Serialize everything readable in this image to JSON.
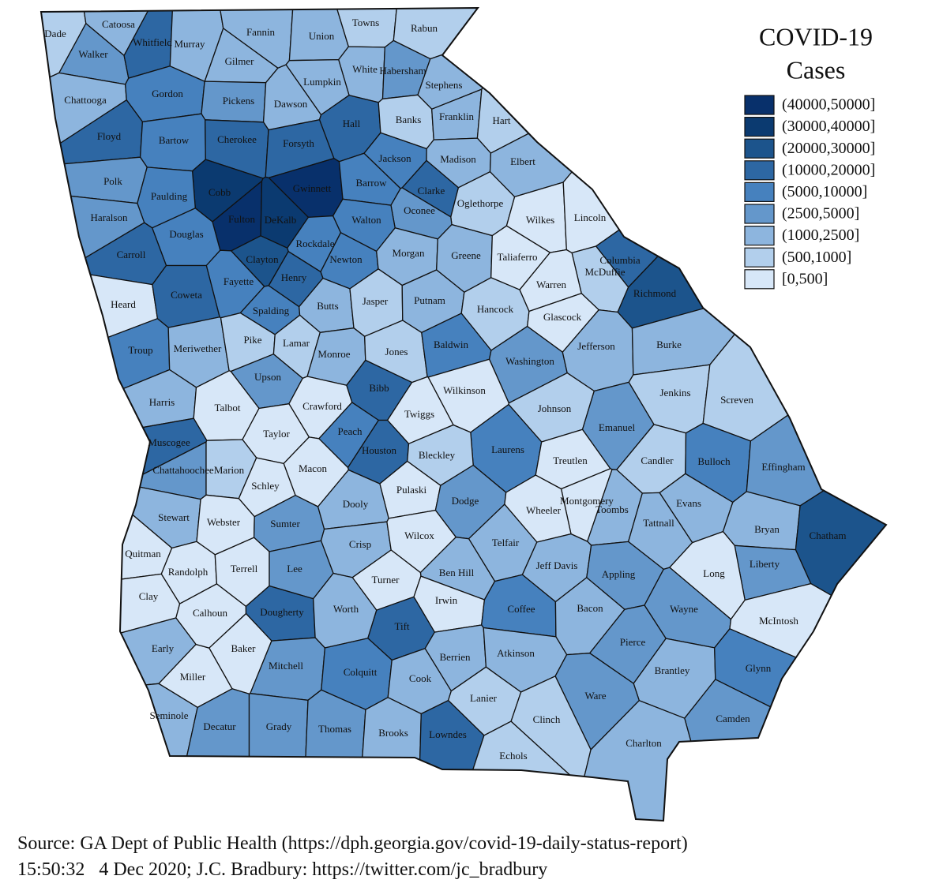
{
  "title": [
    "COVID-19",
    "Cases"
  ],
  "legend": [
    {
      "label": "(40000,50000]",
      "color": "#08306b"
    },
    {
      "label": "(30000,40000]",
      "color": "#0b3a70"
    },
    {
      "label": "(20000,30000]",
      "color": "#1c548c"
    },
    {
      "label": "(10000,20000]",
      "color": "#2d67a3"
    },
    {
      "label": "(5000,10000]",
      "color": "#4681be"
    },
    {
      "label": "(2500,5000]",
      "color": "#6497cb"
    },
    {
      "label": "(1000,2500]",
      "color": "#8db5de"
    },
    {
      "label": "(500,1000]",
      "color": "#b2cfec"
    },
    {
      "label": "[0,500]",
      "color": "#d7e7f8"
    }
  ],
  "counties": [
    {
      "name": "Dade",
      "color": "#b2cfec"
    },
    {
      "name": "Catoosa",
      "color": "#8db5de"
    },
    {
      "name": "Walker",
      "color": "#6497cb"
    },
    {
      "name": "Whitfield",
      "color": "#2d67a3"
    },
    {
      "name": "Murray",
      "color": "#8db5de"
    },
    {
      "name": "Fannin",
      "color": "#8db5de"
    },
    {
      "name": "Union",
      "color": "#8db5de"
    },
    {
      "name": "Towns",
      "color": "#b2cfec"
    },
    {
      "name": "Rabun",
      "color": "#b2cfec"
    },
    {
      "name": "Gilmer",
      "color": "#8db5de"
    },
    {
      "name": "White",
      "color": "#8db5de"
    },
    {
      "name": "Habersham",
      "color": "#6497cb"
    },
    {
      "name": "Stephens",
      "color": "#8db5de"
    },
    {
      "name": "Lumpkin",
      "color": "#8db5de"
    },
    {
      "name": "Chattooga",
      "color": "#8db5de"
    },
    {
      "name": "Gordon",
      "color": "#4681be"
    },
    {
      "name": "Pickens",
      "color": "#6497cb"
    },
    {
      "name": "Dawson",
      "color": "#8db5de"
    },
    {
      "name": "Hall",
      "color": "#2d67a3"
    },
    {
      "name": "Banks",
      "color": "#b2cfec"
    },
    {
      "name": "Franklin",
      "color": "#8db5de"
    },
    {
      "name": "Hart",
      "color": "#b2cfec"
    },
    {
      "name": "Floyd",
      "color": "#2d67a3"
    },
    {
      "name": "Bartow",
      "color": "#4681be"
    },
    {
      "name": "Cherokee",
      "color": "#2d67a3"
    },
    {
      "name": "Forsyth",
      "color": "#2d67a3"
    },
    {
      "name": "Jackson",
      "color": "#4681be"
    },
    {
      "name": "Madison",
      "color": "#8db5de"
    },
    {
      "name": "Elbert",
      "color": "#8db5de"
    },
    {
      "name": "Gwinnett",
      "color": "#08306b"
    },
    {
      "name": "Cobb",
      "color": "#0b3a70"
    },
    {
      "name": "Polk",
      "color": "#6497cb"
    },
    {
      "name": "Paulding",
      "color": "#4681be"
    },
    {
      "name": "Barrow",
      "color": "#4681be"
    },
    {
      "name": "Clarke",
      "color": "#2d67a3"
    },
    {
      "name": "Oglethorpe",
      "color": "#b2cfec"
    },
    {
      "name": "Wilkes",
      "color": "#d7e7f8"
    },
    {
      "name": "Lincoln",
      "color": "#d7e7f8"
    },
    {
      "name": "Haralson",
      "color": "#6497cb"
    },
    {
      "name": "Fulton",
      "color": "#08306b"
    },
    {
      "name": "DeKalb",
      "color": "#0b3a70"
    },
    {
      "name": "Oconee",
      "color": "#6497cb"
    },
    {
      "name": "Walton",
      "color": "#4681be"
    },
    {
      "name": "Douglas",
      "color": "#4681be"
    },
    {
      "name": "Carroll",
      "color": "#2d67a3"
    },
    {
      "name": "Rockdale",
      "color": "#4681be"
    },
    {
      "name": "Newton",
      "color": "#4681be"
    },
    {
      "name": "Morgan",
      "color": "#8db5de"
    },
    {
      "name": "Greene",
      "color": "#8db5de"
    },
    {
      "name": "Taliaferro",
      "color": "#d7e7f8"
    },
    {
      "name": "Columbia",
      "color": "#2d67a3"
    },
    {
      "name": "McDuffie",
      "color": "#b2cfec"
    },
    {
      "name": "Clayton",
      "color": "#1c548c"
    },
    {
      "name": "Warren",
      "color": "#d7e7f8"
    },
    {
      "name": "Heard",
      "color": "#d7e7f8"
    },
    {
      "name": "Fayette",
      "color": "#4681be"
    },
    {
      "name": "Henry",
      "color": "#2d67a3"
    },
    {
      "name": "Richmond",
      "color": "#1c548c"
    },
    {
      "name": "Coweta",
      "color": "#2d67a3"
    },
    {
      "name": "Spalding",
      "color": "#4681be"
    },
    {
      "name": "Butts",
      "color": "#8db5de"
    },
    {
      "name": "Jasper",
      "color": "#b2cfec"
    },
    {
      "name": "Putnam",
      "color": "#8db5de"
    },
    {
      "name": "Hancock",
      "color": "#b2cfec"
    },
    {
      "name": "Glascock",
      "color": "#d7e7f8"
    },
    {
      "name": "Troup",
      "color": "#4681be"
    },
    {
      "name": "Meriwether",
      "color": "#8db5de"
    },
    {
      "name": "Pike",
      "color": "#b2cfec"
    },
    {
      "name": "Lamar",
      "color": "#b2cfec"
    },
    {
      "name": "Monroe",
      "color": "#8db5de"
    },
    {
      "name": "Jones",
      "color": "#b2cfec"
    },
    {
      "name": "Baldwin",
      "color": "#4681be"
    },
    {
      "name": "Washington",
      "color": "#6497cb"
    },
    {
      "name": "Jefferson",
      "color": "#8db5de"
    },
    {
      "name": "Burke",
      "color": "#8db5de"
    },
    {
      "name": "Upson",
      "color": "#6497cb"
    },
    {
      "name": "Bibb",
      "color": "#2d67a3"
    },
    {
      "name": "Wilkinson",
      "color": "#d7e7f8"
    },
    {
      "name": "Jenkins",
      "color": "#b2cfec"
    },
    {
      "name": "Screven",
      "color": "#b2cfec"
    },
    {
      "name": "Harris",
      "color": "#8db5de"
    },
    {
      "name": "Talbot",
      "color": "#d7e7f8"
    },
    {
      "name": "Crawford",
      "color": "#d7e7f8"
    },
    {
      "name": "Twiggs",
      "color": "#d7e7f8"
    },
    {
      "name": "Johnson",
      "color": "#b2cfec"
    },
    {
      "name": "Emanuel",
      "color": "#6497cb"
    },
    {
      "name": "Muscogee",
      "color": "#2d67a3"
    },
    {
      "name": "Taylor",
      "color": "#d7e7f8"
    },
    {
      "name": "Peach",
      "color": "#4681be"
    },
    {
      "name": "Houston",
      "color": "#2d67a3"
    },
    {
      "name": "Laurens",
      "color": "#4681be"
    },
    {
      "name": "Bleckley",
      "color": "#b2cfec"
    },
    {
      "name": "Treutlen",
      "color": "#d7e7f8"
    },
    {
      "name": "Candler",
      "color": "#b2cfec"
    },
    {
      "name": "Bulloch",
      "color": "#4681be"
    },
    {
      "name": "Effingham",
      "color": "#6497cb"
    },
    {
      "name": "Chattahoochee",
      "color": "#6497cb"
    },
    {
      "name": "Marion",
      "color": "#b2cfec"
    },
    {
      "name": "Macon",
      "color": "#d7e7f8"
    },
    {
      "name": "Schley",
      "color": "#d7e7f8"
    },
    {
      "name": "Pulaski",
      "color": "#d7e7f8"
    },
    {
      "name": "Dodge",
      "color": "#6497cb"
    },
    {
      "name": "Montgomery",
      "color": "#d7e7f8"
    },
    {
      "name": "Wheeler",
      "color": "#d7e7f8"
    },
    {
      "name": "Toombs",
      "color": "#8db5de"
    },
    {
      "name": "Tattnall",
      "color": "#8db5de"
    },
    {
      "name": "Evans",
      "color": "#8db5de"
    },
    {
      "name": "Stewart",
      "color": "#8db5de"
    },
    {
      "name": "Webster",
      "color": "#d7e7f8"
    },
    {
      "name": "Sumter",
      "color": "#6497cb"
    },
    {
      "name": "Dooly",
      "color": "#8db5de"
    },
    {
      "name": "Crisp",
      "color": "#8db5de"
    },
    {
      "name": "Wilcox",
      "color": "#d7e7f8"
    },
    {
      "name": "Telfair",
      "color": "#8db5de"
    },
    {
      "name": "Bryan",
      "color": "#8db5de"
    },
    {
      "name": "Chatham",
      "color": "#1c548c"
    },
    {
      "name": "Quitman",
      "color": "#d7e7f8"
    },
    {
      "name": "Randolph",
      "color": "#d7e7f8"
    },
    {
      "name": "Terrell",
      "color": "#d7e7f8"
    },
    {
      "name": "Lee",
      "color": "#6497cb"
    },
    {
      "name": "Ben Hill",
      "color": "#8db5de"
    },
    {
      "name": "Jeff Davis",
      "color": "#8db5de"
    },
    {
      "name": "Appling",
      "color": "#6497cb"
    },
    {
      "name": "Liberty",
      "color": "#6497cb"
    },
    {
      "name": "Long",
      "color": "#d7e7f8"
    },
    {
      "name": "Turner",
      "color": "#d7e7f8"
    },
    {
      "name": "Irwin",
      "color": "#d7e7f8"
    },
    {
      "name": "Clay",
      "color": "#d7e7f8"
    },
    {
      "name": "Calhoun",
      "color": "#d7e7f8"
    },
    {
      "name": "Dougherty",
      "color": "#2d67a3"
    },
    {
      "name": "Worth",
      "color": "#8db5de"
    },
    {
      "name": "Tift",
      "color": "#2d67a3"
    },
    {
      "name": "Coffee",
      "color": "#4681be"
    },
    {
      "name": "Bacon",
      "color": "#8db5de"
    },
    {
      "name": "Wayne",
      "color": "#6497cb"
    },
    {
      "name": "McIntosh",
      "color": "#d7e7f8"
    },
    {
      "name": "Early",
      "color": "#8db5de"
    },
    {
      "name": "Baker",
      "color": "#d7e7f8"
    },
    {
      "name": "Mitchell",
      "color": "#6497cb"
    },
    {
      "name": "Colquitt",
      "color": "#4681be"
    },
    {
      "name": "Berrien",
      "color": "#8db5de"
    },
    {
      "name": "Atkinson",
      "color": "#8db5de"
    },
    {
      "name": "Pierce",
      "color": "#6497cb"
    },
    {
      "name": "Brantley",
      "color": "#8db5de"
    },
    {
      "name": "Glynn",
      "color": "#4681be"
    },
    {
      "name": "Miller",
      "color": "#d7e7f8"
    },
    {
      "name": "Cook",
      "color": "#8db5de"
    },
    {
      "name": "Lanier",
      "color": "#b2cfec"
    },
    {
      "name": "Ware",
      "color": "#6497cb"
    },
    {
      "name": "Seminole",
      "color": "#8db5de"
    },
    {
      "name": "Decatur",
      "color": "#6497cb"
    },
    {
      "name": "Grady",
      "color": "#6497cb"
    },
    {
      "name": "Thomas",
      "color": "#6497cb"
    },
    {
      "name": "Brooks",
      "color": "#8db5de"
    },
    {
      "name": "Lowndes",
      "color": "#2d67a3"
    },
    {
      "name": "Clinch",
      "color": "#b2cfec"
    },
    {
      "name": "Camden",
      "color": "#6497cb"
    },
    {
      "name": "Charlton",
      "color": "#8db5de"
    },
    {
      "name": "Echols",
      "color": "#b2cfec"
    }
  ],
  "source": [
    "Source: GA Dept of Public Health (https://dph.georgia.gov/covid-19-daily-status-report)",
    "15:50:32   4 Dec 2020; J.C. Bradbury: https://twitter.com/jc_bradbury"
  ]
}
